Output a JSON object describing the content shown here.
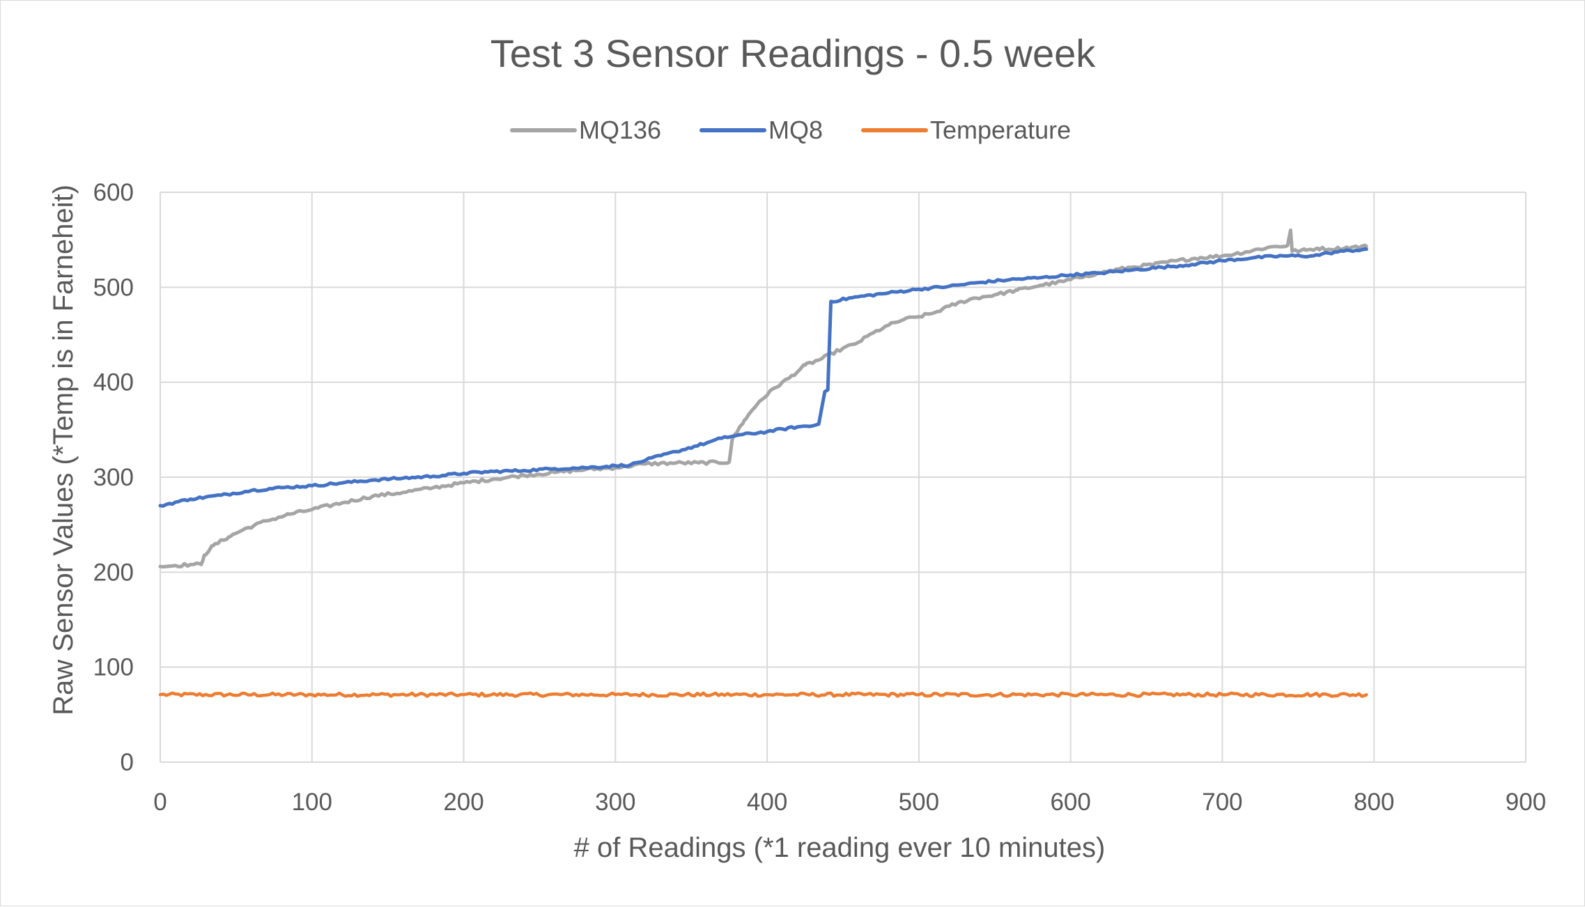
{
  "chart_data": {
    "type": "line",
    "title": "Test 3 Sensor Readings - 0.5 week",
    "xlabel": "# of Readings (*1 reading ever 10 minutes)",
    "ylabel": "Raw Sensor Values (*Temp is in Farneheit)",
    "xlim": [
      0,
      900
    ],
    "ylim": [
      0,
      600
    ],
    "x_ticks": [
      "0",
      "100",
      "200",
      "300",
      "400",
      "500",
      "600",
      "700",
      "800",
      "900"
    ],
    "y_ticks": [
      "0",
      "100",
      "200",
      "300",
      "400",
      "500",
      "600"
    ],
    "grid": true,
    "legend_position": "top",
    "series": [
      {
        "name": "MQ136",
        "color": "#a5a5a5",
        "points": [
          [
            0,
            206
          ],
          [
            10,
            207
          ],
          [
            20,
            208
          ],
          [
            27,
            208
          ],
          [
            29,
            218
          ],
          [
            35,
            228
          ],
          [
            45,
            237
          ],
          [
            55,
            245
          ],
          [
            70,
            254
          ],
          [
            85,
            261
          ],
          [
            100,
            266
          ],
          [
            120,
            273
          ],
          [
            140,
            280
          ],
          [
            160,
            284
          ],
          [
            180,
            289
          ],
          [
            200,
            294
          ],
          [
            220,
            298
          ],
          [
            240,
            302
          ],
          [
            260,
            305
          ],
          [
            280,
            308
          ],
          [
            300,
            310
          ],
          [
            320,
            314
          ],
          [
            340,
            315
          ],
          [
            355,
            315
          ],
          [
            375,
            316
          ],
          [
            377,
            340
          ],
          [
            385,
            360
          ],
          [
            395,
            380
          ],
          [
            405,
            394
          ],
          [
            415,
            405
          ],
          [
            425,
            418
          ],
          [
            435,
            424
          ],
          [
            445,
            432
          ],
          [
            460,
            442
          ],
          [
            470,
            452
          ],
          [
            480,
            460
          ],
          [
            490,
            466
          ],
          [
            500,
            469
          ],
          [
            510,
            473
          ],
          [
            520,
            480
          ],
          [
            535,
            488
          ],
          [
            550,
            492
          ],
          [
            565,
            497
          ],
          [
            580,
            502
          ],
          [
            595,
            506
          ],
          [
            610,
            512
          ],
          [
            625,
            517
          ],
          [
            640,
            521
          ],
          [
            655,
            524
          ],
          [
            670,
            528
          ],
          [
            685,
            531
          ],
          [
            700,
            533
          ],
          [
            715,
            537
          ],
          [
            730,
            542
          ],
          [
            743,
            544
          ],
          [
            745,
            560
          ],
          [
            746,
            538
          ],
          [
            755,
            539
          ],
          [
            763,
            541
          ],
          [
            770,
            540
          ],
          [
            785,
            542
          ],
          [
            795,
            543
          ]
        ]
      },
      {
        "name": "MQ8",
        "color": "#4472c4",
        "points": [
          [
            0,
            270
          ],
          [
            20,
            277
          ],
          [
            40,
            281
          ],
          [
            60,
            286
          ],
          [
            80,
            289
          ],
          [
            100,
            291
          ],
          [
            120,
            294
          ],
          [
            140,
            297
          ],
          [
            160,
            299
          ],
          [
            180,
            301
          ],
          [
            200,
            304
          ],
          [
            220,
            306
          ],
          [
            240,
            307
          ],
          [
            260,
            309
          ],
          [
            280,
            310
          ],
          [
            300,
            312
          ],
          [
            310,
            313
          ],
          [
            320,
            318
          ],
          [
            340,
            327
          ],
          [
            360,
            336
          ],
          [
            370,
            341
          ],
          [
            380,
            344
          ],
          [
            400,
            348
          ],
          [
            420,
            353
          ],
          [
            430,
            354
          ],
          [
            434,
            356
          ],
          [
            438,
            390
          ],
          [
            440,
            392
          ],
          [
            442,
            485
          ],
          [
            460,
            490
          ],
          [
            480,
            494
          ],
          [
            500,
            498
          ],
          [
            520,
            501
          ],
          [
            540,
            505
          ],
          [
            560,
            508
          ],
          [
            580,
            510
          ],
          [
            600,
            513
          ],
          [
            620,
            515
          ],
          [
            640,
            518
          ],
          [
            660,
            521
          ],
          [
            680,
            524
          ],
          [
            700,
            528
          ],
          [
            720,
            531
          ],
          [
            740,
            533
          ],
          [
            760,
            533
          ],
          [
            770,
            536
          ],
          [
            780,
            538
          ],
          [
            795,
            540
          ]
        ]
      },
      {
        "name": "Temperature",
        "color": "#ed7d31",
        "points": [
          [
            0,
            71
          ],
          [
            100,
            71
          ],
          [
            200,
            71
          ],
          [
            300,
            71
          ],
          [
            400,
            71
          ],
          [
            500,
            71
          ],
          [
            600,
            71
          ],
          [
            700,
            71
          ],
          [
            795,
            71
          ]
        ]
      }
    ]
  }
}
